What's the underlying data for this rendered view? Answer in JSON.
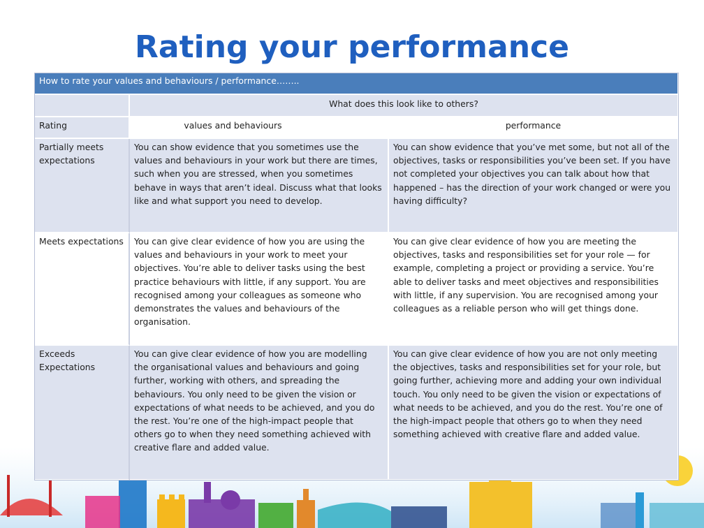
{
  "title": "Rating your performance",
  "table": {
    "header": "How to rate your values and behaviours / performance……..",
    "group_header": "What does this look like to others?",
    "columns": {
      "rating": "Rating",
      "values": "values and behaviours",
      "performance": "performance"
    },
    "rows": [
      {
        "rating": "Partially meets expectations",
        "values": "You can show evidence that you sometimes use the values and behaviours in your work but there are times, such when you are stressed, when you sometimes behave in ways that aren’t ideal.  Discuss what that looks like and what support you need to develop.",
        "performance": "You can show evidence that you’ve met some, but not all of the objectives, tasks or responsibilities you’ve been set.  If you have not completed your objectives you can talk about how that happened – has the direction of your work changed or were you having difficulty?"
      },
      {
        "rating": "Meets expectations",
        "values": "You can give clear evidence of how you are using the values and behaviours in your work to meet your objectives.  You’re able to deliver tasks using the best practice behaviours with little, if any support. You are recognised among your colleagues as someone who demonstrates the values and behaviours of the organisation.",
        "performance": "You can give clear evidence of how you are meeting the objectives, tasks and responsibilities set for your role — for example, completing a project or providing a service. You’re able to deliver tasks and meet objectives and responsibilities with little, if any supervision. You are recognised among your colleagues as a reliable person who will get things done."
      },
      {
        "rating": "Exceeds Expectations",
        "values": "You can give clear evidence of how you are modelling the organisational values and behaviours and going further, working with others, and spreading the behaviours. You only need to be given the vision or expectations of what needs to be achieved, and you do the rest. You’re one of the high-impact people that others go to when they need something achieved with creative flare and added value.",
        "performance": "You can give clear evidence of how you are not only meeting the objectives, tasks and responsibilities set for your role, but going further, achieving more and adding your own individual touch. You only need to be given the vision or expectations of what needs to be achieved, and you do the rest. You’re one of the high-impact people that others go to when they need something achieved with creative flare and added value."
      }
    ]
  },
  "colors": {
    "title": "#1f5fbf",
    "header_bg": "#4a7ebb",
    "shade_bg": "#dde2ef"
  },
  "decoration": "city-skyline-illustration"
}
